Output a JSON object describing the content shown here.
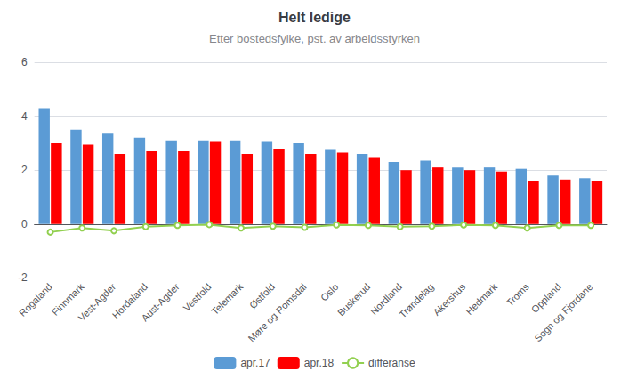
{
  "chart_data": {
    "type": "bar",
    "title": "Helt ledige",
    "subtitle": "Etter bostedsfylke, pst. av arbeidsstyrken",
    "categories": [
      "Rogaland",
      "Finnmark",
      "Vest-Agder",
      "Hordaland",
      "Aust-Agder",
      "Vestfold",
      "Telemark",
      "Østfold",
      "Møre og Romsdal",
      "Oslo",
      "Buskerud",
      "Nordland",
      "Trøndelag",
      "Akershus",
      "Hedmark",
      "Troms",
      "Oppland",
      "Sogn og Fjordane"
    ],
    "series": [
      {
        "name": "apr.17",
        "color": "#5B9BD5",
        "values": [
          4.3,
          3.5,
          3.35,
          3.2,
          3.1,
          3.1,
          3.1,
          3.05,
          3.0,
          2.75,
          2.6,
          2.3,
          2.35,
          2.1,
          2.1,
          2.05,
          1.8,
          1.7
        ]
      },
      {
        "name": "apr.18",
        "color": "#FF0000",
        "values": [
          3.0,
          2.95,
          2.6,
          2.7,
          2.7,
          3.05,
          2.6,
          2.8,
          2.6,
          2.65,
          2.45,
          2.0,
          2.1,
          2.0,
          1.95,
          1.6,
          1.65,
          1.6
        ]
      },
      {
        "name": "differanse",
        "type": "line",
        "color": "#92D050",
        "values": [
          -0.3,
          -0.15,
          -0.25,
          -0.1,
          -0.05,
          -0.02,
          -0.15,
          -0.08,
          -0.12,
          -0.03,
          -0.05,
          -0.1,
          -0.08,
          -0.03,
          -0.05,
          -0.15,
          -0.05,
          -0.05
        ]
      }
    ],
    "ylim": [
      -2,
      6
    ],
    "yticks": [
      -2,
      0,
      2,
      4,
      6
    ],
    "grid": true,
    "legend": "bottom"
  }
}
